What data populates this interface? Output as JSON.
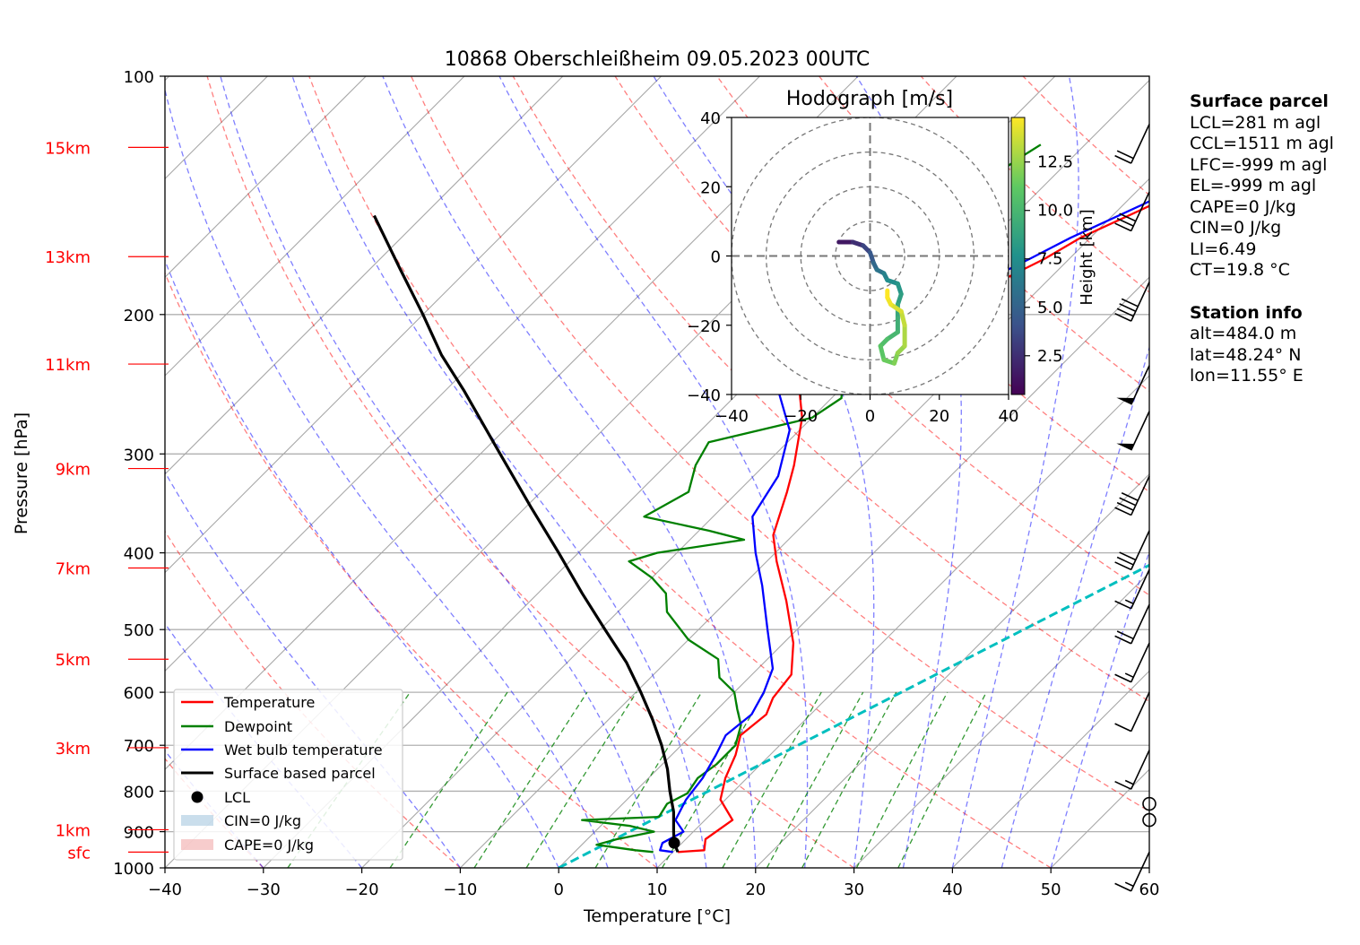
{
  "title": "10868 Oberschleißheim 09.05.2023 00UTC",
  "chart_data": {
    "type": "line",
    "subtype": "skew-T log-P",
    "xlabel": "Temperature [°C]",
    "ylabel": "Pressure [hPa]",
    "xlim": [
      -40,
      60
    ],
    "ylim": [
      1000,
      100
    ],
    "y_scale": "log",
    "x_ticks": [
      "−40",
      "−30",
      "−20",
      "−10",
      "0",
      "10",
      "20",
      "30",
      "40",
      "50",
      "60"
    ],
    "y_ticks": [
      "1000",
      "900",
      "800",
      "700",
      "600",
      "500",
      "400",
      "300",
      "200",
      "100"
    ],
    "height_labels": [
      {
        "label": "sfc",
        "p": 955
      },
      {
        "label": "1km",
        "p": 895
      },
      {
        "label": "3km",
        "p": 705
      },
      {
        "label": "5km",
        "p": 545
      },
      {
        "label": "7km",
        "p": 418
      },
      {
        "label": "9km",
        "p": 313
      },
      {
        "label": "11km",
        "p": 231
      },
      {
        "label": "13km",
        "p": 169
      },
      {
        "label": "15km",
        "p": 123
      }
    ],
    "grid": true,
    "legend_position": "bottom-left",
    "legend": [
      "Temperature",
      "Dewpoint",
      "Wet bulb temperature",
      "Surface based parcel",
      "LCL",
      "CIN=0 J/kg",
      "CAPE=0 J/kg"
    ],
    "series": [
      {
        "name": "Temperature",
        "color": "#ff0000",
        "points": [
          [
            10.5,
            955
          ],
          [
            13,
            950
          ],
          [
            12,
            920
          ],
          [
            12.8,
            870
          ],
          [
            9.5,
            820
          ],
          [
            7.8,
            770
          ],
          [
            6.5,
            720
          ],
          [
            5,
            680
          ],
          [
            5.5,
            640
          ],
          [
            4.5,
            610
          ],
          [
            4,
            570
          ],
          [
            1,
            520
          ],
          [
            -4,
            460
          ],
          [
            -9,
            410
          ],
          [
            -12,
            380
          ],
          [
            -15,
            335
          ],
          [
            -17,
            310
          ],
          [
            -21,
            270
          ],
          [
            -26,
            237
          ],
          [
            -22.5,
            210
          ],
          [
            -17.5,
            200
          ],
          [
            -16,
            188
          ],
          [
            -12.5,
            170
          ],
          [
            -11,
            160
          ],
          [
            -7,
            145
          ],
          [
            -3,
            130
          ],
          [
            -0.5,
            121
          ],
          [
            0,
            120
          ]
        ]
      },
      {
        "name": "Dewpoint",
        "color": "#008000",
        "points": [
          [
            8,
            955
          ],
          [
            6,
            950
          ],
          [
            1.5,
            935
          ],
          [
            3,
            920
          ],
          [
            6,
            900
          ],
          [
            3,
            885
          ],
          [
            -2.5,
            870
          ],
          [
            5,
            862
          ],
          [
            4.5,
            830
          ],
          [
            5.5,
            805
          ],
          [
            5,
            770
          ],
          [
            5.5,
            740
          ],
          [
            5.5,
            700
          ],
          [
            4,
            660
          ],
          [
            2,
            630
          ],
          [
            0,
            600
          ],
          [
            -3,
            575
          ],
          [
            -5,
            545
          ],
          [
            -10,
            515
          ],
          [
            -15,
            475
          ],
          [
            -17,
            450
          ],
          [
            -20,
            430
          ],
          [
            -24,
            410
          ],
          [
            -22,
            400
          ],
          [
            -14.5,
            385
          ],
          [
            -19,
            375
          ],
          [
            -27,
            360
          ],
          [
            -25,
            335
          ],
          [
            -27,
            310
          ],
          [
            -28,
            290
          ],
          [
            -20,
            270
          ],
          [
            -19,
            255
          ],
          [
            -21,
            240
          ],
          [
            -20.5,
            225
          ],
          [
            -22,
            210
          ],
          [
            -27,
            200
          ],
          [
            -34,
            185
          ],
          [
            -32,
            170
          ],
          [
            -30,
            155
          ],
          [
            -27,
            140
          ],
          [
            -25,
            125
          ],
          [
            -24.5,
            122
          ]
        ]
      },
      {
        "name": "Wet bulb temperature",
        "color": "#0000ff",
        "points": [
          [
            10,
            955
          ],
          [
            8.5,
            950
          ],
          [
            8,
            930
          ],
          [
            9,
            900
          ],
          [
            7,
            870
          ],
          [
            6,
            820
          ],
          [
            5.5,
            770
          ],
          [
            4.5,
            720
          ],
          [
            3.5,
            680
          ],
          [
            4,
            640
          ],
          [
            3,
            600
          ],
          [
            1.5,
            560
          ],
          [
            -3,
            500
          ],
          [
            -8,
            440
          ],
          [
            -12,
            400
          ],
          [
            -16,
            360
          ],
          [
            -17.5,
            320
          ],
          [
            -21,
            280
          ],
          [
            -27,
            245
          ],
          [
            -25,
            210
          ],
          [
            -20,
            200
          ],
          [
            -17,
            185
          ],
          [
            -14,
            170
          ],
          [
            -12,
            160
          ],
          [
            -8,
            145
          ],
          [
            -4,
            130
          ],
          [
            -1,
            121
          ],
          [
            -0.5,
            120
          ]
        ]
      },
      {
        "name": "Surface based parcel",
        "color": "#000000",
        "points": [
          [
            10.5,
            955
          ],
          [
            9.2,
            930
          ],
          [
            8,
            900
          ],
          [
            6,
            850
          ],
          [
            3.5,
            800
          ],
          [
            1,
            750
          ],
          [
            -2,
            700
          ],
          [
            -5.5,
            650
          ],
          [
            -9.5,
            600
          ],
          [
            -14,
            550
          ],
          [
            -19.5,
            500
          ],
          [
            -25.5,
            450
          ],
          [
            -32,
            400
          ],
          [
            -39.5,
            350
          ],
          [
            -48,
            300
          ],
          [
            -58,
            250
          ],
          [
            -64,
            225
          ],
          [
            -70,
            200
          ],
          [
            -77,
            175
          ],
          [
            -85,
            150
          ]
        ]
      }
    ],
    "lcl": {
      "t": 9.2,
      "p": 930
    },
    "cyan_line": {
      "points": [
        [
          0,
          1000
        ],
        [
          40,
          300
        ],
        [
          70,
          150
        ]
      ]
    },
    "barbs": [
      {
        "p": 955,
        "speed_kt": 15
      },
      {
        "p": 870,
        "speed_kt": 0
      },
      {
        "p": 830,
        "speed_kt": 0
      },
      {
        "p": 710,
        "speed_kt": 15
      },
      {
        "p": 600,
        "speed_kt": 10
      },
      {
        "p": 520,
        "speed_kt": 15
      },
      {
        "p": 465,
        "speed_kt": 20
      },
      {
        "p": 420,
        "speed_kt": 15
      },
      {
        "p": 375,
        "speed_kt": 30
      },
      {
        "p": 320,
        "speed_kt": 40
      },
      {
        "p": 265,
        "speed_kt": 50
      },
      {
        "p": 232,
        "speed_kt": 50
      },
      {
        "p": 182,
        "speed_kt": 40
      },
      {
        "p": 140,
        "speed_kt": 30
      },
      {
        "p": 115,
        "speed_kt": 20
      }
    ],
    "hodograph": {
      "title": "Hodograph [m/s]",
      "xlim": [
        -40,
        40
      ],
      "ylim": [
        -40,
        40
      ],
      "ticks": [
        "−40",
        "−20",
        "0",
        "20",
        "40"
      ],
      "tick_values": [
        -40,
        -20,
        0,
        20,
        40
      ],
      "colorbar_label": "Height [km]",
      "colorbar_ticks": [
        "2.5",
        "5.0",
        "7.5",
        "10.0",
        "12.5"
      ],
      "colorbar_values": [
        2.5,
        5.0,
        7.5,
        10.0,
        12.5
      ],
      "colorbar_range": [
        0.5,
        14.8
      ],
      "points": [
        [
          -9,
          4,
          0.5
        ],
        [
          -5,
          4,
          1.5
        ],
        [
          -2,
          3,
          2.5
        ],
        [
          0,
          1,
          3.5
        ],
        [
          1,
          -2,
          4.5
        ],
        [
          2,
          -4,
          5.3
        ],
        [
          4,
          -5,
          6
        ],
        [
          5,
          -7,
          6.8
        ],
        [
          8,
          -8,
          7.5
        ],
        [
          9,
          -11,
          8
        ],
        [
          8,
          -14,
          8.5
        ],
        [
          8,
          -18,
          9
        ],
        [
          8,
          -22,
          9.5
        ],
        [
          5,
          -24,
          10
        ],
        [
          3,
          -26,
          10.5
        ],
        [
          4,
          -30,
          11
        ],
        [
          7,
          -31,
          11.5
        ],
        [
          8,
          -28,
          12
        ],
        [
          10,
          -26,
          12.5
        ],
        [
          10,
          -20,
          13
        ],
        [
          9,
          -16,
          13.5
        ],
        [
          6,
          -14,
          14
        ],
        [
          5,
          -12,
          14.5
        ],
        [
          5,
          -10,
          14.8
        ]
      ]
    }
  },
  "panel": {
    "surface_title": "Surface parcel",
    "lcl": "LCL=281 m agl",
    "ccl": "CCL=1511 m agl",
    "lfc": "LFC=-999 m agl",
    "el": "EL=-999 m agl",
    "cape": "CAPE=0 J/kg",
    "cin": "CIN=0 J/kg",
    "li": "LI=6.49",
    "ct": "CT=19.8 °C",
    "station_title": "Station info",
    "alt": "alt=484.0 m",
    "lat": "lat=48.24° N",
    "lon": "lon=11.55° E"
  }
}
